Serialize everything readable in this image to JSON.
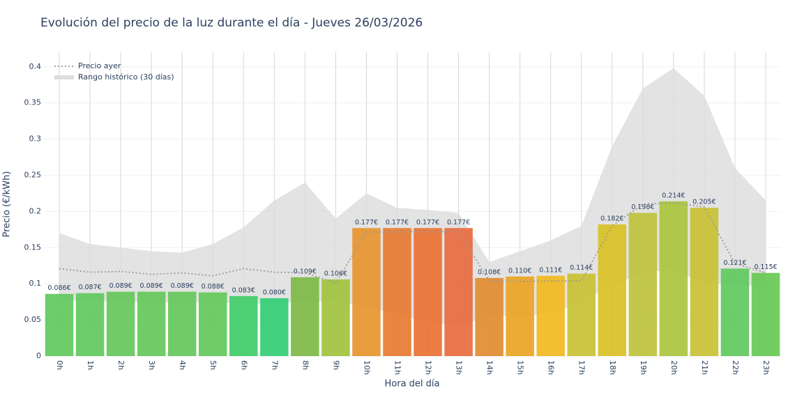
{
  "chart_data": {
    "type": "bar",
    "title": "Evolución del precio de la luz durante el día - Jueves 26/03/2026",
    "x_label": "Hora del día",
    "y_label": "Precio (€/kWh)",
    "categories": [
      "0h",
      "1h",
      "2h",
      "3h",
      "4h",
      "5h",
      "6h",
      "7h",
      "8h",
      "9h",
      "10h",
      "11h",
      "12h",
      "13h",
      "14h",
      "15h",
      "16h",
      "17h",
      "18h",
      "19h",
      "20h",
      "21h",
      "22h",
      "23h"
    ],
    "values": [
      0.086,
      0.087,
      0.089,
      0.089,
      0.089,
      0.088,
      0.083,
      0.08,
      0.109,
      0.106,
      0.177,
      0.177,
      0.177,
      0.177,
      0.108,
      0.11,
      0.111,
      0.114,
      0.182,
      0.198,
      0.214,
      0.205,
      0.121,
      0.115
    ],
    "value_labels": [
      "0.086€",
      "0.087€",
      "0.089€",
      "0.089€",
      "0.089€",
      "0.088€",
      "0.083€",
      "0.080€",
      "0.109€",
      "0.106€",
      "0.177€",
      "0.177€",
      "0.177€",
      "0.177€",
      "0.108€",
      "0.110€",
      "0.111€",
      "0.114€",
      "0.182€",
      "0.198€",
      "0.214€",
      "0.205€",
      "0.121€",
      "0.115€"
    ],
    "colors": [
      "#5cc85a",
      "#5cc85a",
      "#62c756",
      "#62c756",
      "#62c756",
      "#5fc858",
      "#3ccb66",
      "#2ecc71",
      "#7bb843",
      "#9dc23a",
      "#e8922a",
      "#e8772d",
      "#ea6f2e",
      "#e8683a",
      "#e0892a",
      "#eaa21f",
      "#f0b81a",
      "#c8c030",
      "#d8c020",
      "#bcc23a",
      "#a8c43a",
      "#c8c030",
      "#5cc85a",
      "#64c850"
    ],
    "line": {
      "name": "Precio ayer",
      "color": "#999999",
      "values": [
        0.121,
        0.116,
        0.117,
        0.113,
        0.115,
        0.111,
        0.121,
        0.116,
        0.115,
        0.101,
        0.171,
        0.172,
        0.172,
        0.172,
        0.104,
        0.103,
        0.104,
        0.104,
        0.18,
        0.21,
        0.212,
        0.206,
        0.128,
        0.115
      ]
    },
    "band": {
      "name": "Rango histórico (30 días)",
      "color": "#dcdcdc",
      "upper": [
        0.17,
        0.155,
        0.15,
        0.145,
        0.143,
        0.155,
        0.178,
        0.215,
        0.24,
        0.19,
        0.225,
        0.205,
        0.202,
        0.198,
        0.13,
        0.145,
        0.16,
        0.18,
        0.29,
        0.37,
        0.398,
        0.36,
        0.26,
        0.215
      ],
      "lower": [
        0.077,
        0.076,
        0.075,
        0.074,
        0.074,
        0.074,
        0.073,
        0.072,
        0.076,
        0.075,
        0.068,
        0.058,
        0.047,
        0.042,
        0.055,
        0.055,
        0.058,
        0.075,
        0.098,
        0.115,
        0.12,
        0.1,
        0.1,
        0.095
      ]
    },
    "ylim": [
      0,
      0.42
    ],
    "yticks": [
      0,
      0.05,
      0.1,
      0.15,
      0.2,
      0.25,
      0.3,
      0.35,
      0.4
    ],
    "grid": true,
    "legend": "top-left"
  }
}
